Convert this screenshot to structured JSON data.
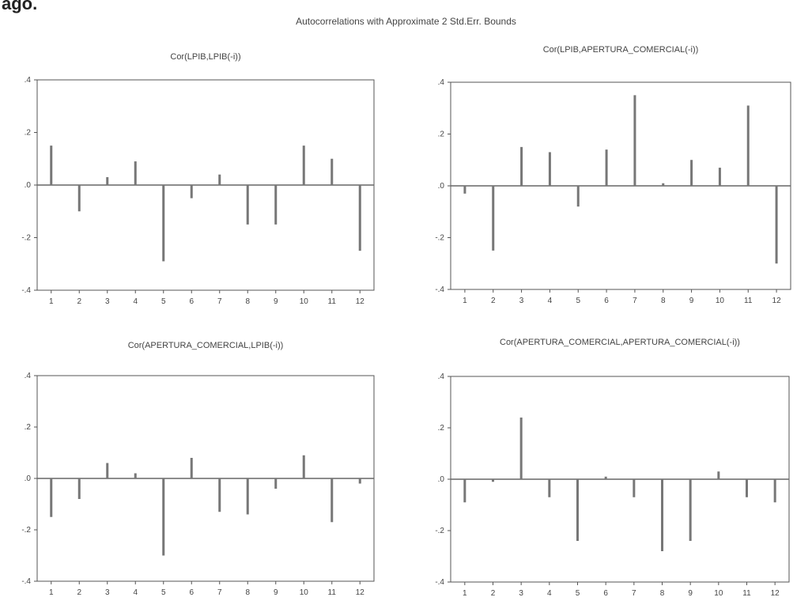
{
  "header_fragment": "ago.",
  "suptitle": "Autocorrelations with Approximate 2 Std.Err. Bounds",
  "colors": {
    "axes": "#555555",
    "bars": "#777777",
    "zero": "#666666"
  },
  "chart_data": [
    {
      "type": "bar",
      "title": "Cor(LPIB,LPIB(-i))",
      "categories": [
        "1",
        "2",
        "3",
        "4",
        "5",
        "6",
        "7",
        "8",
        "9",
        "10",
        "11",
        "12"
      ],
      "values": [
        0.15,
        -0.1,
        0.03,
        0.09,
        -0.29,
        -0.05,
        0.04,
        -0.15,
        -0.15,
        0.15,
        0.1,
        -0.25
      ],
      "ylim": [
        -0.4,
        0.4
      ],
      "yticks": [
        "-.4",
        "-.2",
        ".0",
        ".2",
        ".4"
      ],
      "grid": false
    },
    {
      "type": "bar",
      "title": "Cor(LPIB,APERTURA_COMERCIAL(-i))",
      "categories": [
        "1",
        "2",
        "3",
        "4",
        "5",
        "6",
        "7",
        "8",
        "9",
        "10",
        "11",
        "12"
      ],
      "values": [
        -0.03,
        -0.25,
        0.15,
        0.13,
        -0.08,
        0.14,
        0.35,
        0.01,
        0.1,
        0.07,
        0.31,
        -0.3
      ],
      "ylim": [
        -0.4,
        0.4
      ],
      "yticks": [
        "-.4",
        "-.2",
        ".0",
        ".2",
        ".4"
      ],
      "grid": false
    },
    {
      "type": "bar",
      "title": "Cor(APERTURA_COMERCIAL,LPIB(-i))",
      "categories": [
        "1",
        "2",
        "3",
        "4",
        "5",
        "6",
        "7",
        "8",
        "9",
        "10",
        "11",
        "12"
      ],
      "values": [
        -0.15,
        -0.08,
        0.06,
        0.02,
        -0.3,
        0.08,
        -0.13,
        -0.14,
        -0.04,
        0.09,
        -0.17,
        -0.02
      ],
      "ylim": [
        -0.4,
        0.4
      ],
      "yticks": [
        "-.4",
        "-.2",
        ".0",
        ".2",
        ".4"
      ],
      "grid": false
    },
    {
      "type": "bar",
      "title": "Cor(APERTURA_COMERCIAL,APERTURA_COMERCIAL(-i))",
      "categories": [
        "1",
        "2",
        "3",
        "4",
        "5",
        "6",
        "7",
        "8",
        "9",
        "10",
        "11",
        "12"
      ],
      "values": [
        -0.09,
        -0.01,
        0.24,
        -0.07,
        -0.24,
        0.01,
        -0.07,
        -0.28,
        -0.24,
        0.03,
        -0.07,
        -0.09
      ],
      "ylim": [
        -0.4,
        0.4
      ],
      "yticks": [
        "-.4",
        "-.2",
        ".0",
        ".2",
        ".4"
      ],
      "grid": false
    }
  ]
}
